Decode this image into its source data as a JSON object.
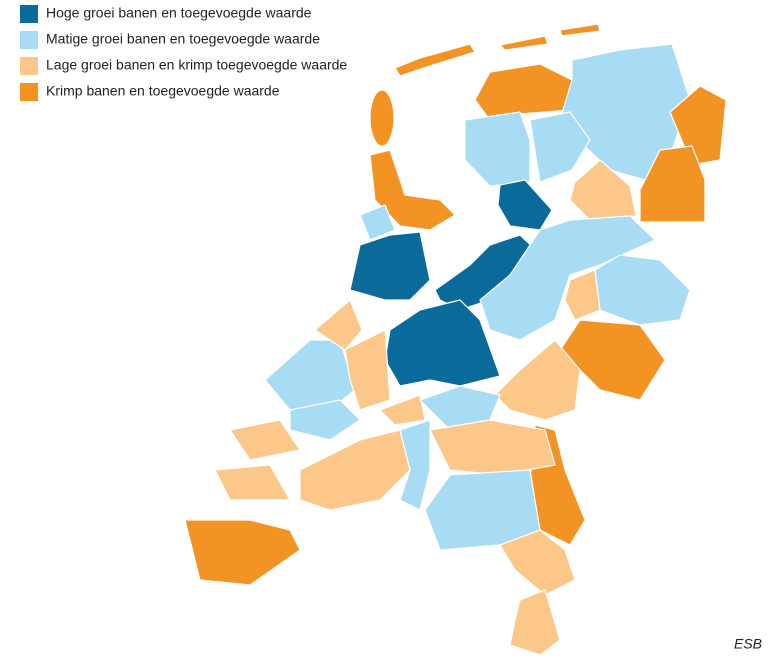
{
  "legend": [
    {
      "label": "Hoge groei banen en toegevoegde waarde",
      "color": "#0a6a9a"
    },
    {
      "label": "Matige groei banen en toegevoegde waarde",
      "color": "#a8dcf4"
    },
    {
      "label": "Lage groei banen en krimp toegevoegde waarde",
      "color": "#fbc88a"
    },
    {
      "label": "Krimp banen en toegevoegde waarde",
      "color": "#f39323"
    }
  ],
  "source": "ESB"
}
